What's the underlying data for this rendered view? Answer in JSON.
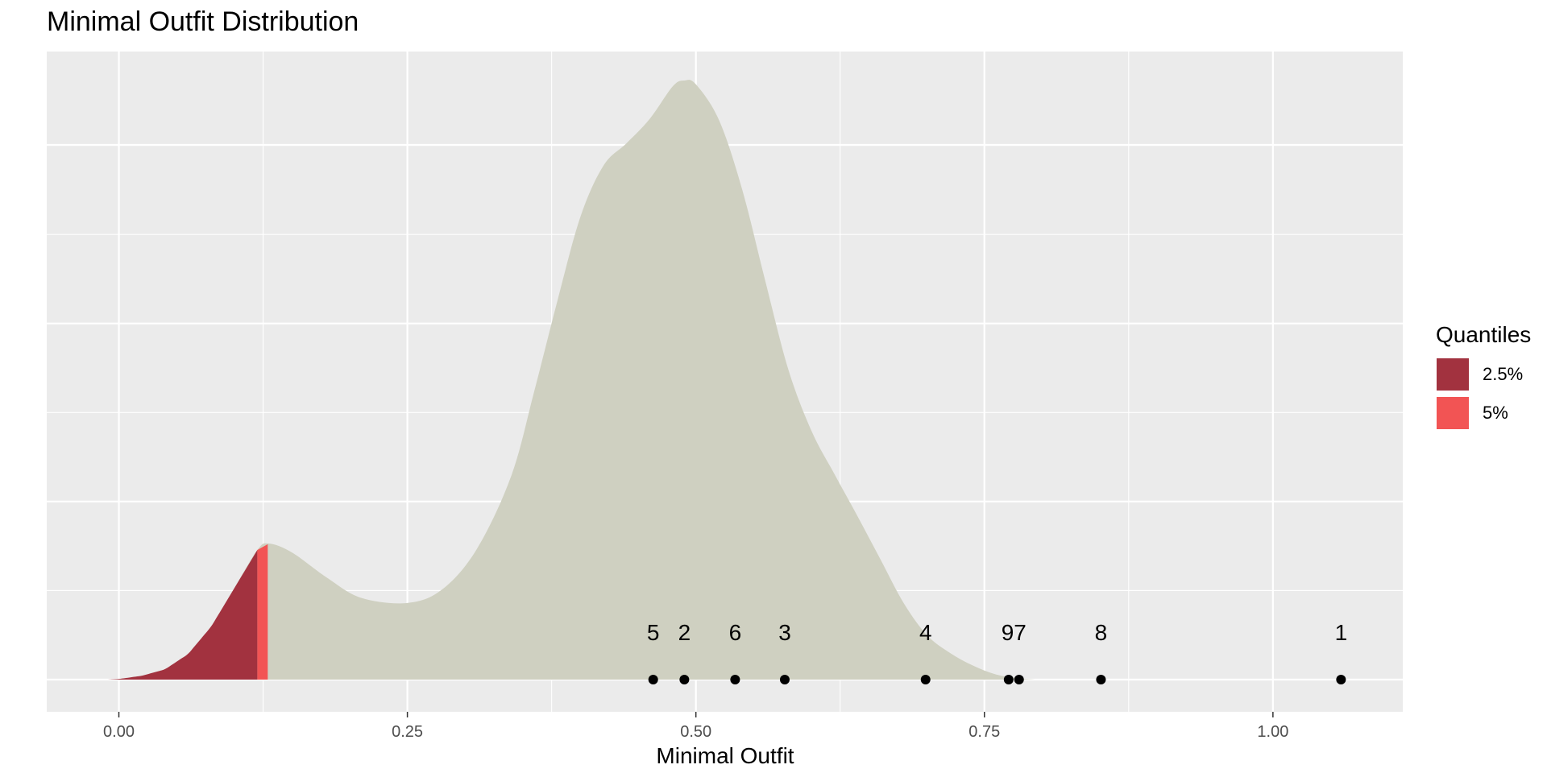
{
  "chart_data": {
    "type": "area",
    "title": "Minimal Outfit Distribution",
    "xlabel": "Minimal Outfit",
    "ylabel": "",
    "xlim": [
      -0.0625,
      1.1125
    ],
    "x_ticks": [
      0.0,
      0.25,
      0.5,
      0.75,
      1.0
    ],
    "x_tick_labels": [
      "0.00",
      "0.25",
      "0.50",
      "0.75",
      "1.00"
    ],
    "y_ticks_labeled": false,
    "grid": true,
    "legend": {
      "title": "Quantiles",
      "placement": "right",
      "entries": [
        {
          "label": "2.5%",
          "color": "#A2323F"
        },
        {
          "label": "5%",
          "color": "#F25454"
        }
      ]
    },
    "density": {
      "fill_color": "#CFD0C1",
      "x": [
        -0.01,
        0.0,
        0.02,
        0.04,
        0.06,
        0.08,
        0.1,
        0.12,
        0.13,
        0.15,
        0.18,
        0.21,
        0.25,
        0.28,
        0.31,
        0.34,
        0.36,
        0.38,
        0.4,
        0.42,
        0.44,
        0.46,
        0.48,
        0.49,
        0.5,
        0.52,
        0.54,
        0.56,
        0.58,
        0.6,
        0.62,
        0.64,
        0.66,
        0.68,
        0.7,
        0.72,
        0.74,
        0.76,
        0.78,
        0.795
      ],
      "y": [
        0.0,
        0.001,
        0.006,
        0.016,
        0.04,
        0.083,
        0.143,
        0.203,
        0.213,
        0.199,
        0.16,
        0.128,
        0.12,
        0.141,
        0.204,
        0.319,
        0.452,
        0.593,
        0.725,
        0.805,
        0.84,
        0.878,
        0.929,
        0.938,
        0.932,
        0.876,
        0.768,
        0.625,
        0.486,
        0.39,
        0.322,
        0.256,
        0.188,
        0.12,
        0.07,
        0.042,
        0.022,
        0.008,
        0.002,
        0.0
      ]
    },
    "quantile_regions": [
      {
        "label": "2.5%",
        "from": -0.01,
        "to": 0.12,
        "color": "#A2323F"
      },
      {
        "label": "5%",
        "from": 0.12,
        "to": 0.129,
        "color": "#F25454"
      }
    ],
    "points": [
      {
        "label": "5",
        "x": 0.463
      },
      {
        "label": "2",
        "x": 0.49
      },
      {
        "label": "6",
        "x": 0.534
      },
      {
        "label": "3",
        "x": 0.577
      },
      {
        "label": "4",
        "x": 0.699
      },
      {
        "label": "9",
        "x": 0.771
      },
      {
        "label": "7",
        "x": 0.78
      },
      {
        "label": "8",
        "x": 0.851
      },
      {
        "label": "1",
        "x": 1.059
      }
    ],
    "point_label_overrides": {
      "9": "97",
      "7": ""
    }
  }
}
